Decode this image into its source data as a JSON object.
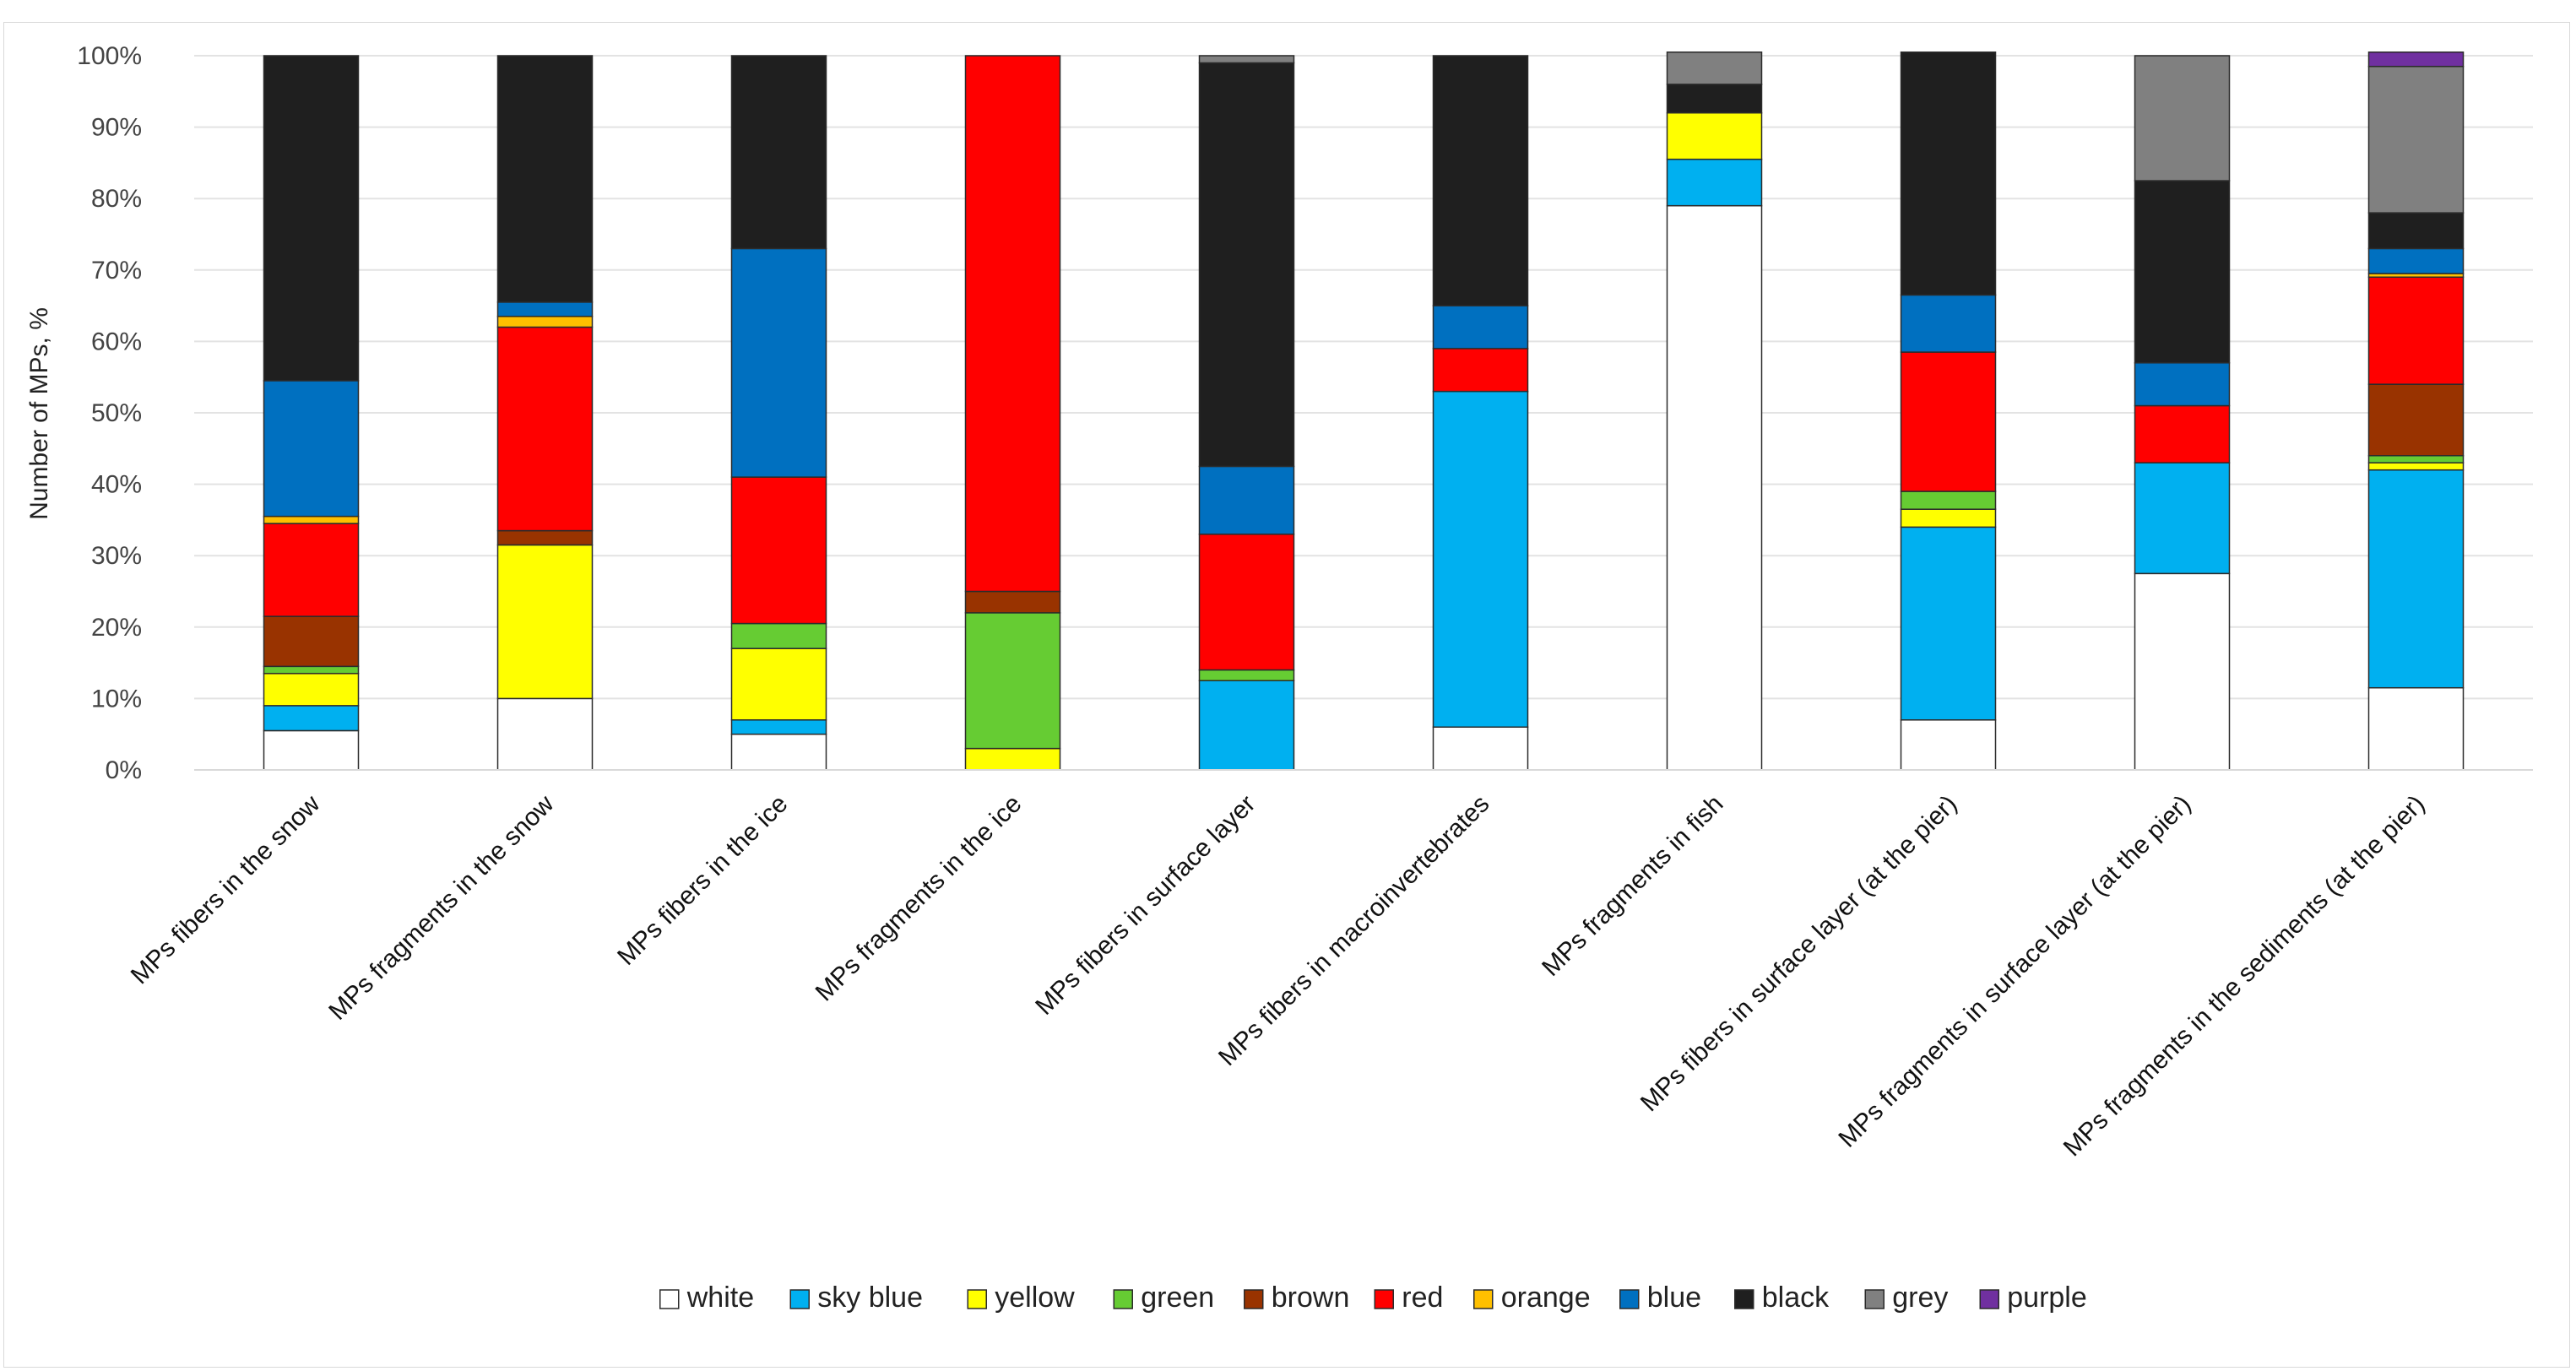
{
  "chart_data": {
    "type": "bar",
    "stacked": true,
    "title": "",
    "xlabel": "",
    "ylabel": "Number of MPs, %",
    "ylim": [
      0,
      100
    ],
    "yticks": [
      "0%",
      "10%",
      "20%",
      "30%",
      "40%",
      "50%",
      "60%",
      "70%",
      "80%",
      "90%",
      "100%"
    ],
    "grid": true,
    "legend_position": "bottom",
    "categories": [
      "MPs fibers in the snow",
      "MPs fragments in the snow",
      "MPs fibers in the ice",
      "MPs fragments in the ice",
      "MPs fibers in surface layer",
      "MPs fibers in macroinvertebrates",
      "MPs fragments in fish",
      "MPs fibers in surface layer (at the pier)",
      "MPs fragments in surface layer (at the pier)",
      "MPs fragments in the sediments (at the pier)"
    ],
    "series": [
      {
        "name": "white",
        "color": "#ffffff",
        "values": [
          5.5,
          10,
          5,
          0,
          0,
          6,
          79,
          7,
          27.5,
          11.5
        ]
      },
      {
        "name": "sky blue",
        "color": "#00b0f0",
        "values": [
          3.5,
          0,
          2,
          0,
          12.5,
          47,
          6.5,
          27,
          15.5,
          30.5
        ]
      },
      {
        "name": "yellow",
        "color": "#ffff00",
        "values": [
          4.5,
          21.5,
          10,
          3,
          0,
          0,
          6.5,
          2.5,
          0,
          1
        ]
      },
      {
        "name": "green",
        "color": "#66cc33",
        "values": [
          1,
          0,
          3.5,
          19,
          1.5,
          0,
          0,
          2.5,
          0,
          1
        ]
      },
      {
        "name": "brown",
        "color": "#993300",
        "values": [
          7,
          2,
          0,
          3,
          0,
          0,
          0,
          0,
          0,
          10
        ]
      },
      {
        "name": "red",
        "color": "#ff0000",
        "values": [
          13,
          28.5,
          20.5,
          75,
          19,
          6,
          0,
          19.5,
          8,
          15
        ]
      },
      {
        "name": "orange",
        "color": "#ffc000",
        "values": [
          1,
          1.5,
          0,
          0,
          0,
          0,
          0,
          0,
          0,
          0.5
        ]
      },
      {
        "name": "blue",
        "color": "#0070c0",
        "values": [
          19,
          2,
          32,
          0,
          9.5,
          6,
          0,
          8,
          6,
          3.5
        ]
      },
      {
        "name": "black",
        "color": "#1f1f1f",
        "values": [
          45.5,
          34.5,
          27,
          0,
          56.5,
          35,
          4,
          34,
          25.5,
          5
        ]
      },
      {
        "name": "grey",
        "color": "#808080",
        "values": [
          0,
          0,
          0,
          0,
          1,
          0,
          4.5,
          0,
          17.5,
          20.5
        ]
      },
      {
        "name": "purple",
        "color": "#7030a0",
        "values": [
          0,
          0,
          0,
          0,
          0,
          0,
          0,
          0,
          0,
          2
        ]
      }
    ]
  }
}
